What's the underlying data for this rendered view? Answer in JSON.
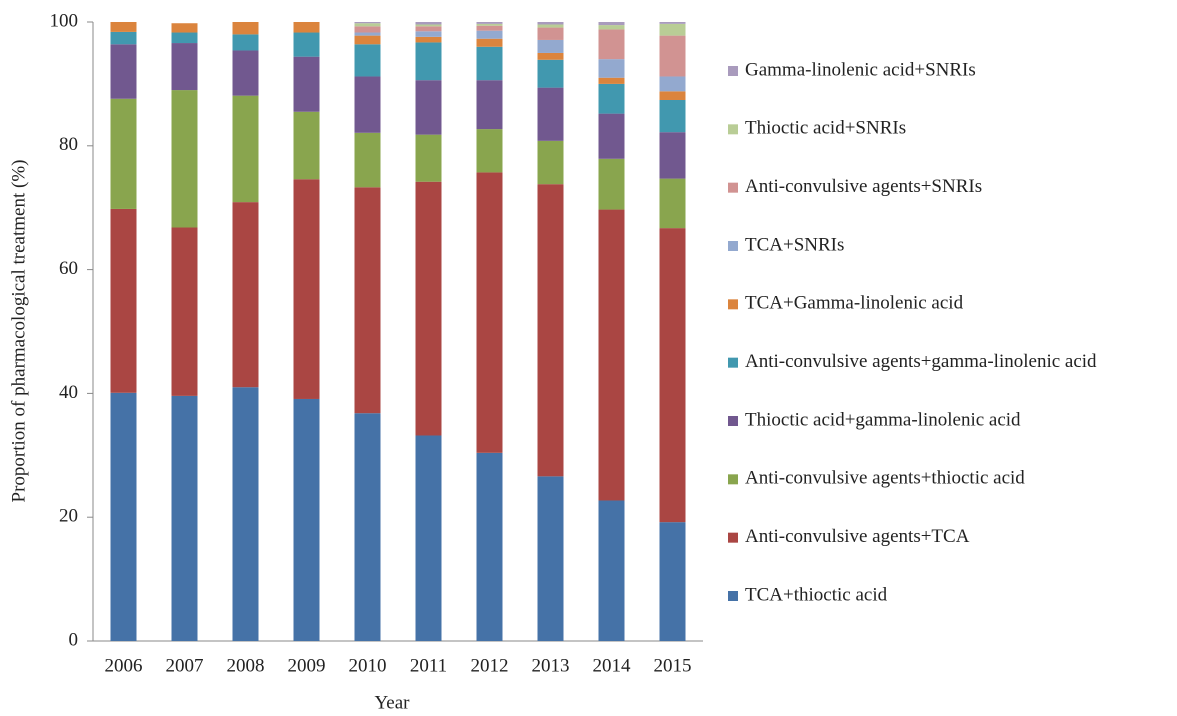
{
  "chart_data": {
    "type": "stacked_bar",
    "x_label": "Year",
    "y_label": "Proportion of pharmacological treatment (%)",
    "categories": [
      "2006",
      "2007",
      "2008",
      "2009",
      "2010",
      "2011",
      "2012",
      "2013",
      "2014",
      "2015"
    ],
    "ylim": [
      0,
      100
    ],
    "yticks": [
      0,
      20,
      40,
      60,
      80,
      100
    ],
    "grid": false,
    "legend": "right",
    "series": [
      {
        "name": "TCA+thioctic acid",
        "color": "#4572a7",
        "values": [
          40.1,
          39.6,
          41.0,
          39.1,
          36.8,
          33.2,
          30.4,
          26.6,
          22.7,
          19.2
        ]
      },
      {
        "name": "Anti-convulsive agents+TCA",
        "color": "#aa4643",
        "values": [
          29.7,
          27.2,
          29.9,
          35.5,
          36.5,
          41.0,
          45.3,
          47.2,
          47.0,
          47.5
        ]
      },
      {
        "name": "Anti-convulsive agents+thioctic acid",
        "color": "#89a54e",
        "values": [
          17.8,
          22.2,
          17.2,
          10.9,
          8.8,
          7.6,
          7.0,
          7.0,
          8.2,
          8.0
        ]
      },
      {
        "name": "Thioctic acid+gamma-linolenic acid",
        "color": "#71588f",
        "values": [
          8.8,
          7.6,
          7.3,
          8.9,
          9.1,
          8.8,
          7.9,
          8.6,
          7.3,
          7.5
        ]
      },
      {
        "name": "Anti-convulsive agents+gamma-linolenic acid",
        "color": "#4198af",
        "values": [
          2.0,
          1.7,
          2.6,
          3.9,
          5.2,
          6.1,
          5.4,
          4.5,
          4.8,
          5.2
        ]
      },
      {
        "name": "TCA+Gamma-linolenic acid",
        "color": "#db843d",
        "values": [
          1.6,
          1.5,
          2.0,
          1.7,
          1.4,
          0.9,
          1.3,
          1.1,
          1.0,
          1.4
        ]
      },
      {
        "name": "TCA+SNRIs",
        "color": "#93a9cf",
        "values": [
          0,
          0,
          0,
          0,
          0.5,
          0.9,
          1.3,
          2.1,
          3.0,
          2.4
        ]
      },
      {
        "name": "Anti-convulsive agents+SNRIs",
        "color": "#d19392",
        "values": [
          0,
          0,
          0,
          0,
          1.0,
          0.8,
          0.8,
          2.0,
          4.8,
          6.6
        ]
      },
      {
        "name": "Thioctic acid+SNRIs",
        "color": "#b9cd96",
        "values": [
          0,
          0,
          0,
          0,
          0.5,
          0.3,
          0.3,
          0.5,
          0.7,
          1.9
        ]
      },
      {
        "name": "Gamma-linolenic acid+SNRIs",
        "color": "#a99bbd",
        "values": [
          0,
          0,
          0,
          0,
          0.2,
          0.4,
          0.3,
          0.4,
          0.5,
          0.3
        ]
      }
    ]
  }
}
